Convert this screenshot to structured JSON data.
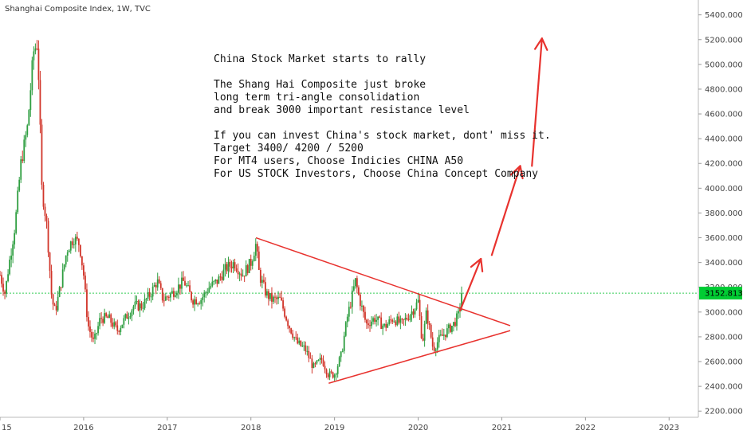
{
  "header": {
    "symbol": "Shanghai Composite Index, 1W, TVC"
  },
  "annotation": {
    "lines": [
      "China Stock Market starts to rally",
      "",
      "The Shang Hai Composite just broke",
      "long term tri-angle consolidation",
      "and break 3000 important resistance level",
      "",
      "If you can invest China's stock market, dont' miss it.",
      "Target 3400/ 4200 / 5200",
      "For MT4 users, Choose Indicies CHINA A50",
      "For US STOCK Investors,  Choose China Concept Company"
    ]
  },
  "price_tag": {
    "value": 3152.813,
    "label": "3152.813",
    "color": "#00cc33"
  },
  "colors": {
    "up": "#2e9e40",
    "down": "#d1352a",
    "drawing": "#e8322e",
    "arrow": "#e8322e",
    "level": "#33cc55"
  },
  "chart_data": {
    "type": "candlestick",
    "x_labels": [
      "15",
      "2016",
      "2017",
      "2018",
      "2019",
      "2020",
      "2021",
      "2022",
      "2023"
    ],
    "x_ticks": [
      2015.0,
      2016.0,
      2017.0,
      2018.0,
      2019.0,
      2020.0,
      2021.0,
      2022.0,
      2023.0
    ],
    "x_range": [
      2015.0,
      2023.35
    ],
    "y_ticks": [
      2200,
      2400,
      2600,
      2800,
      3000,
      3200,
      3400,
      3600,
      3800,
      4000,
      4200,
      4400,
      4600,
      4800,
      5000,
      5200,
      5400
    ],
    "y_tick_labels": [
      "2200.000",
      "2400.000",
      "2600.000",
      "2800.000",
      "3000.000",
      "3200.000",
      "3400.000",
      "3600.000",
      "3800.000",
      "4000.000",
      "4200.000",
      "4400.000",
      "4600.000",
      "4800.000",
      "5000.000",
      "5200.000",
      "5400.000"
    ],
    "ylim": [
      2150,
      5520
    ],
    "price_path": [
      [
        2015.0,
        3300
      ],
      [
        2015.06,
        3150
      ],
      [
        2015.1,
        3350
      ],
      [
        2015.18,
        3700
      ],
      [
        2015.25,
        4200
      ],
      [
        2015.33,
        4500
      ],
      [
        2015.4,
        5100
      ],
      [
        2015.45,
        5178
      ],
      [
        2015.5,
        4000
      ],
      [
        2015.56,
        3700
      ],
      [
        2015.62,
        3100
      ],
      [
        2015.66,
        3000
      ],
      [
        2015.72,
        3200
      ],
      [
        2015.8,
        3500
      ],
      [
        2015.88,
        3600
      ],
      [
        2015.95,
        3550
      ],
      [
        2016.0,
        3300
      ],
      [
        2016.05,
        2900
      ],
      [
        2016.12,
        2750
      ],
      [
        2016.2,
        2950
      ],
      [
        2016.3,
        2950
      ],
      [
        2016.4,
        2850
      ],
      [
        2016.5,
        2950
      ],
      [
        2016.6,
        3050
      ],
      [
        2016.7,
        3050
      ],
      [
        2016.8,
        3150
      ],
      [
        2016.88,
        3250
      ],
      [
        2016.95,
        3100
      ],
      [
        2017.05,
        3150
      ],
      [
        2017.2,
        3250
      ],
      [
        2017.3,
        3100
      ],
      [
        2017.4,
        3100
      ],
      [
        2017.5,
        3200
      ],
      [
        2017.6,
        3250
      ],
      [
        2017.7,
        3350
      ],
      [
        2017.8,
        3400
      ],
      [
        2017.9,
        3300
      ],
      [
        2018.0,
        3400
      ],
      [
        2018.06,
        3550
      ],
      [
        2018.1,
        3300
      ],
      [
        2018.18,
        3150
      ],
      [
        2018.25,
        3100
      ],
      [
        2018.35,
        3100
      ],
      [
        2018.45,
        2900
      ],
      [
        2018.55,
        2750
      ],
      [
        2018.65,
        2700
      ],
      [
        2018.75,
        2550
      ],
      [
        2018.85,
        2620
      ],
      [
        2018.93,
        2490
      ],
      [
        2019.0,
        2500
      ],
      [
        2019.08,
        2650
      ],
      [
        2019.15,
        2950
      ],
      [
        2019.25,
        3250
      ],
      [
        2019.3,
        3100
      ],
      [
        2019.38,
        2900
      ],
      [
        2019.48,
        2950
      ],
      [
        2019.6,
        2880
      ],
      [
        2019.7,
        2950
      ],
      [
        2019.8,
        2900
      ],
      [
        2019.92,
        3000
      ],
      [
        2020.0,
        3085
      ],
      [
        2020.05,
        2750
      ],
      [
        2020.1,
        3000
      ],
      [
        2020.18,
        2700
      ],
      [
        2020.25,
        2780
      ],
      [
        2020.35,
        2850
      ],
      [
        2020.42,
        2900
      ],
      [
        2020.48,
        2970
      ],
      [
        2020.52,
        3152
      ]
    ],
    "triangle": {
      "upper": [
        [
          2018.06,
          3600
        ],
        [
          2021.1,
          2890
        ]
      ],
      "lower": [
        [
          2018.93,
          2425
        ],
        [
          2021.1,
          2850
        ]
      ]
    },
    "resistance_level": 3152.813,
    "arrows": [
      {
        "from": [
          2020.5,
          3010
        ],
        "to": [
          2020.75,
          3430
        ]
      },
      {
        "from": [
          2020.88,
          3460
        ],
        "to": [
          2021.22,
          4180
        ]
      },
      {
        "from": [
          2021.36,
          4180
        ],
        "to": [
          2021.48,
          5210
        ]
      }
    ]
  }
}
